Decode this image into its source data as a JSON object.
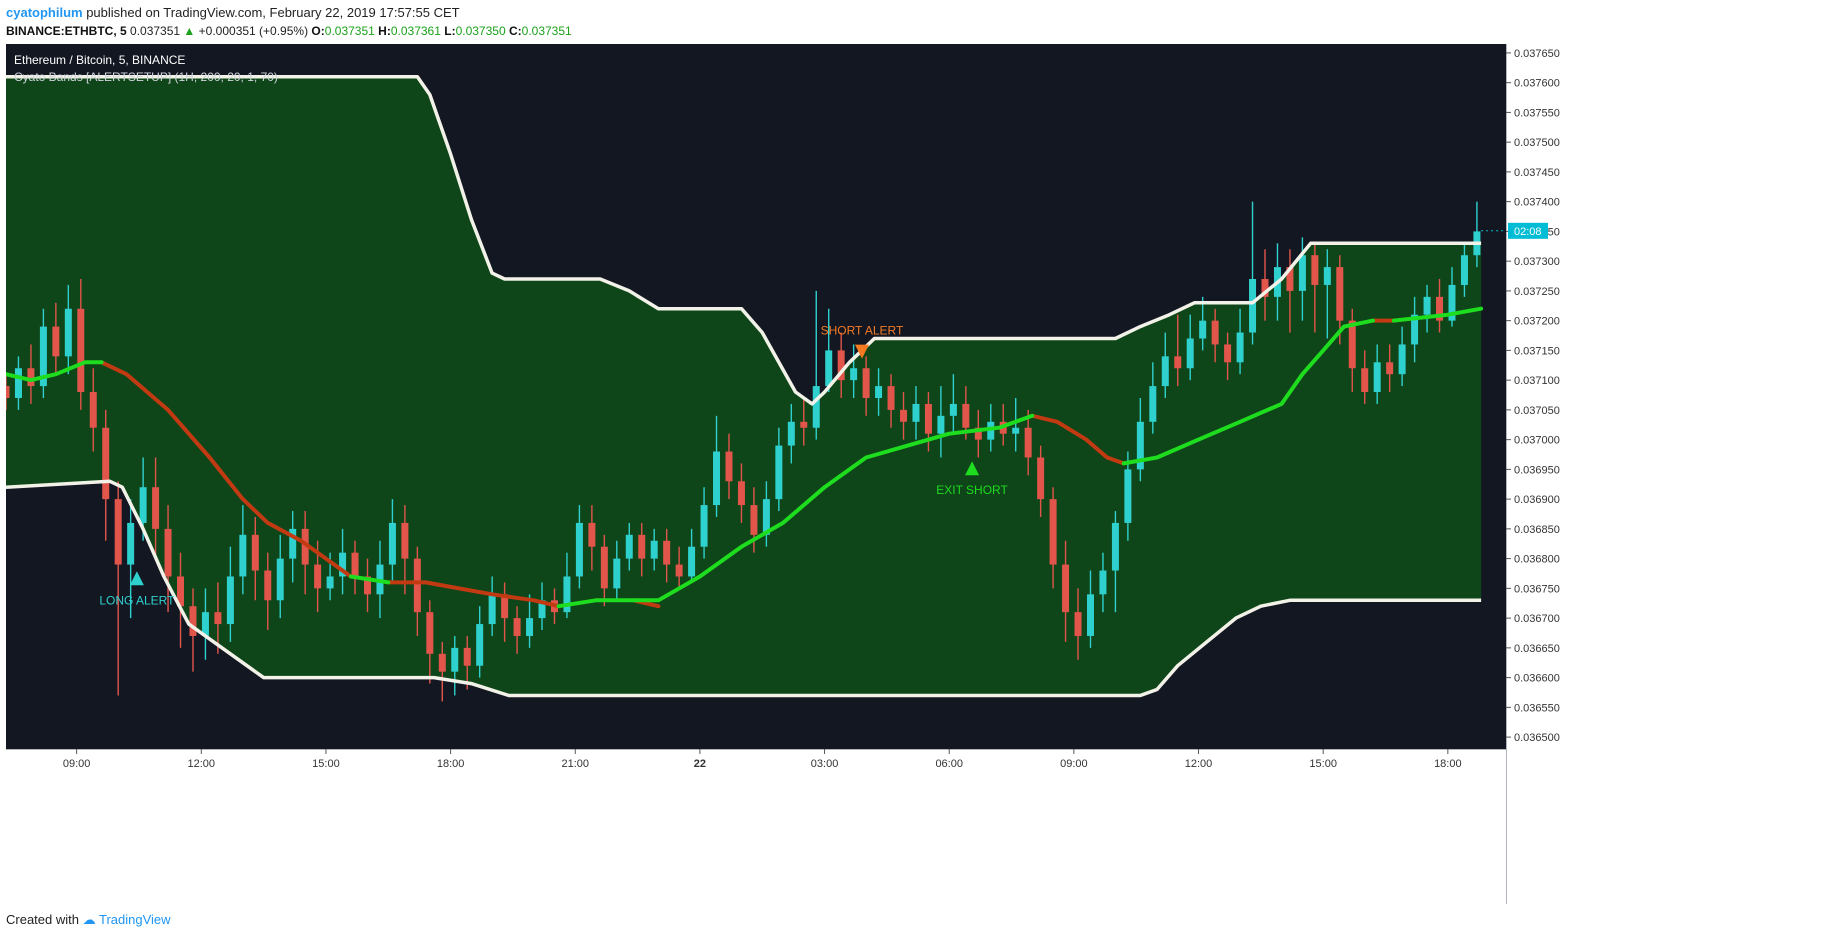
{
  "header": {
    "author": "cyatophilum",
    "published_text": "published on TradingView.com, February 22, 2019 17:57:55 CET",
    "symbol": "BINANCE:ETHBTC, 5",
    "last": "0.037351",
    "change": "+0.000351 (+0.95%)",
    "o_label": "O:",
    "o_value": "0.037351",
    "h_label": "H:",
    "h_value": "0.037361",
    "l_label": "L:",
    "l_value": "0.037350",
    "c_label": "C:",
    "c_value": "0.037351"
  },
  "legend": {
    "title": "Ethereum / Bitcoin, 5, BINANCE",
    "indicator": "Cyato Bands [ALERTSETUP] (1H, 200, 20, 1, 70)"
  },
  "footer": {
    "created_with": "Created with",
    "brand": "TradingView"
  },
  "chart_data": {
    "type": "candlestick",
    "y_ticks": [
      "0.036500",
      "0.036550",
      "0.036600",
      "0.036650",
      "0.036700",
      "0.036750",
      "0.036800",
      "0.036850",
      "0.036900",
      "0.036950",
      "0.037000",
      "0.037050",
      "0.037100",
      "0.037150",
      "0.037200",
      "0.037250",
      "0.037300",
      "0.037350",
      "0.037400",
      "0.037450",
      "0.037500",
      "0.037550",
      "0.037600",
      "0.037650"
    ],
    "ylim": [
      0.03648,
      0.037665
    ],
    "x_ticks": [
      "09:00",
      "12:00",
      "15:00",
      "18:00",
      "21:00",
      "22",
      "03:00",
      "06:00",
      "09:00",
      "12:00",
      "15:00",
      "18:00"
    ],
    "x_tick_hours": [
      9,
      12,
      15,
      18,
      21,
      24,
      27,
      30,
      33,
      36,
      39,
      42
    ],
    "xlim": [
      7.3,
      43.4
    ],
    "price_badge": "02:08",
    "last_price": 0.037351,
    "colors": {
      "background": "#131722",
      "band_fill": "#0e4519",
      "band_line": "#f2f2e8",
      "basis_up": "#1edc1e",
      "basis_down": "#c23a12",
      "candle_up": "#2fd1cf",
      "candle_down": "#e2554b",
      "alert_long": "#2fd1cf",
      "alert_short": "#f47a22",
      "alert_exit": "#1edc1e",
      "badge": "#00bcd4"
    },
    "upper_band": [
      [
        7.3,
        0.03761
      ],
      [
        17.2,
        0.03761
      ],
      [
        17.5,
        0.03758
      ],
      [
        18.0,
        0.03748
      ],
      [
        18.5,
        0.03737
      ],
      [
        19.0,
        0.03728
      ],
      [
        19.3,
        0.03727
      ],
      [
        21.6,
        0.03727
      ],
      [
        22.3,
        0.03725
      ],
      [
        23.0,
        0.03722
      ],
      [
        24.6,
        0.03722
      ],
      [
        25.0,
        0.03722
      ],
      [
        25.5,
        0.03718
      ],
      [
        26.3,
        0.03708
      ],
      [
        26.7,
        0.03706
      ],
      [
        27.0,
        0.03708
      ],
      [
        27.6,
        0.03713
      ],
      [
        28.2,
        0.03717
      ],
      [
        34.0,
        0.03717
      ],
      [
        34.6,
        0.03719
      ],
      [
        35.3,
        0.03721
      ],
      [
        35.9,
        0.03723
      ],
      [
        37.3,
        0.03723
      ],
      [
        38.0,
        0.03727
      ],
      [
        38.7,
        0.03733
      ],
      [
        42.8,
        0.03733
      ]
    ],
    "lower_band": [
      [
        7.3,
        0.03692
      ],
      [
        9.8,
        0.03693
      ],
      [
        10.1,
        0.03692
      ],
      [
        10.6,
        0.03685
      ],
      [
        11.1,
        0.03677
      ],
      [
        11.7,
        0.03669
      ],
      [
        12.5,
        0.03665
      ],
      [
        13.5,
        0.0366
      ],
      [
        17.6,
        0.0366
      ],
      [
        18.5,
        0.03659
      ],
      [
        19.4,
        0.03657
      ],
      [
        34.6,
        0.03657
      ],
      [
        35.0,
        0.03658
      ],
      [
        35.5,
        0.03662
      ],
      [
        36.2,
        0.03666
      ],
      [
        36.9,
        0.0367
      ],
      [
        37.5,
        0.03672
      ],
      [
        38.2,
        0.03673
      ],
      [
        42.8,
        0.03673
      ]
    ],
    "basis_up_segments": [
      [
        [
          7.3,
          0.03711
        ],
        [
          7.9,
          0.0371
        ],
        [
          8.5,
          0.03711
        ],
        [
          9.2,
          0.03713
        ],
        [
          9.6,
          0.03713
        ]
      ],
      [
        [
          15.6,
          0.03677
        ],
        [
          16.5,
          0.03676
        ]
      ],
      [
        [
          20.6,
          0.03672
        ],
        [
          21.5,
          0.03673
        ],
        [
          22.4,
          0.03673
        ],
        [
          23.0,
          0.03673
        ],
        [
          24.0,
          0.03677
        ],
        [
          25.0,
          0.03682
        ],
        [
          26.0,
          0.03686
        ],
        [
          27.0,
          0.03692
        ],
        [
          28.0,
          0.03697
        ],
        [
          29.0,
          0.03699
        ],
        [
          30.0,
          0.03701
        ],
        [
          31.2,
          0.03702
        ],
        [
          32.0,
          0.03704
        ]
      ],
      [
        [
          34.2,
          0.03696
        ],
        [
          35.0,
          0.03697
        ],
        [
          36.0,
          0.037
        ],
        [
          37.0,
          0.03703
        ],
        [
          38.0,
          0.03706
        ],
        [
          38.5,
          0.03711
        ],
        [
          39.0,
          0.03715
        ],
        [
          39.5,
          0.03719
        ],
        [
          40.2,
          0.0372
        ]
      ],
      [
        [
          40.7,
          0.0372
        ],
        [
          42.0,
          0.03721
        ],
        [
          42.8,
          0.03722
        ]
      ]
    ],
    "basis_down_segments": [
      [
        [
          9.6,
          0.03713
        ],
        [
          10.2,
          0.03711
        ],
        [
          11.2,
          0.03705
        ],
        [
          12.2,
          0.03697
        ],
        [
          13.0,
          0.0369
        ],
        [
          13.6,
          0.03686
        ],
        [
          14.4,
          0.03683
        ],
        [
          15.0,
          0.0368
        ],
        [
          15.6,
          0.03677
        ]
      ],
      [
        [
          16.5,
          0.03676
        ],
        [
          17.4,
          0.03676
        ],
        [
          18.2,
          0.03675
        ],
        [
          19.0,
          0.03674
        ],
        [
          20.0,
          0.03673
        ],
        [
          20.6,
          0.03672
        ]
      ],
      [
        [
          22.4,
          0.03673
        ],
        [
          23.0,
          0.03672
        ]
      ],
      [
        [
          32.0,
          0.03704
        ],
        [
          32.6,
          0.03703
        ],
        [
          33.3,
          0.037
        ],
        [
          33.8,
          0.03697
        ],
        [
          34.2,
          0.03696
        ]
      ],
      [
        [
          40.2,
          0.0372
        ],
        [
          40.7,
          0.0372
        ]
      ]
    ],
    "candles": [
      [
        7.3,
        0.03709,
        0.03707,
        0.03711,
        0.03705
      ],
      [
        7.6,
        0.03707,
        0.03712,
        0.03714,
        0.03705
      ],
      [
        7.9,
        0.03712,
        0.03709,
        0.03716,
        0.03706
      ],
      [
        8.2,
        0.03709,
        0.03719,
        0.03722,
        0.03707
      ],
      [
        8.5,
        0.03719,
        0.03714,
        0.03723,
        0.03711
      ],
      [
        8.8,
        0.03714,
        0.03722,
        0.03726,
        0.03711
      ],
      [
        9.1,
        0.03722,
        0.03708,
        0.03727,
        0.03705
      ],
      [
        9.4,
        0.03708,
        0.03702,
        0.03712,
        0.03698
      ],
      [
        9.7,
        0.03702,
        0.0369,
        0.03705,
        0.03683
      ],
      [
        10.0,
        0.0369,
        0.03679,
        0.03693,
        0.03657
      ],
      [
        10.3,
        0.03679,
        0.03686,
        0.0369,
        0.0367
      ],
      [
        10.6,
        0.03686,
        0.03692,
        0.03697,
        0.03683
      ],
      [
        10.9,
        0.03692,
        0.03685,
        0.03697,
        0.0368
      ],
      [
        11.2,
        0.03685,
        0.03677,
        0.03689,
        0.03671
      ],
      [
        11.5,
        0.03677,
        0.03672,
        0.03681,
        0.03665
      ],
      [
        11.8,
        0.03672,
        0.03667,
        0.03675,
        0.03661
      ],
      [
        12.1,
        0.03667,
        0.03671,
        0.03675,
        0.03663
      ],
      [
        12.4,
        0.03671,
        0.03669,
        0.03676,
        0.03664
      ],
      [
        12.7,
        0.03669,
        0.03677,
        0.03682,
        0.03666
      ],
      [
        13.0,
        0.03677,
        0.03684,
        0.03689,
        0.03674
      ],
      [
        13.3,
        0.03684,
        0.03678,
        0.03687,
        0.03673
      ],
      [
        13.6,
        0.03678,
        0.03673,
        0.03681,
        0.03668
      ],
      [
        13.9,
        0.03673,
        0.0368,
        0.03684,
        0.0367
      ],
      [
        14.2,
        0.0368,
        0.03685,
        0.03688,
        0.03676
      ],
      [
        14.5,
        0.03685,
        0.03679,
        0.03688,
        0.03674
      ],
      [
        14.8,
        0.03679,
        0.03675,
        0.03683,
        0.03671
      ],
      [
        15.1,
        0.03675,
        0.03677,
        0.03681,
        0.03673
      ],
      [
        15.4,
        0.03677,
        0.03681,
        0.03685,
        0.03674
      ],
      [
        15.7,
        0.03681,
        0.03677,
        0.03683,
        0.03674
      ],
      [
        16.0,
        0.03677,
        0.03674,
        0.0368,
        0.03671
      ],
      [
        16.3,
        0.03674,
        0.03679,
        0.03683,
        0.0367
      ],
      [
        16.6,
        0.03679,
        0.03686,
        0.0369,
        0.03676
      ],
      [
        16.9,
        0.03686,
        0.0368,
        0.03689,
        0.03674
      ],
      [
        17.2,
        0.0368,
        0.03671,
        0.03682,
        0.03667
      ],
      [
        17.5,
        0.03671,
        0.03664,
        0.03673,
        0.03659
      ],
      [
        17.8,
        0.03664,
        0.03661,
        0.03666,
        0.03656
      ],
      [
        18.1,
        0.03661,
        0.03665,
        0.03667,
        0.03657
      ],
      [
        18.4,
        0.03665,
        0.03662,
        0.03667,
        0.03658
      ],
      [
        18.7,
        0.03662,
        0.03669,
        0.03672,
        0.0366
      ],
      [
        19.0,
        0.03669,
        0.03674,
        0.03677,
        0.03667
      ],
      [
        19.3,
        0.03674,
        0.0367,
        0.03676,
        0.03666
      ],
      [
        19.6,
        0.0367,
        0.03667,
        0.03672,
        0.03664
      ],
      [
        19.9,
        0.03667,
        0.0367,
        0.03674,
        0.03665
      ],
      [
        20.2,
        0.0367,
        0.03673,
        0.03676,
        0.03668
      ],
      [
        20.5,
        0.03673,
        0.03671,
        0.03675,
        0.03669
      ],
      [
        20.8,
        0.03671,
        0.03677,
        0.03681,
        0.0367
      ],
      [
        21.1,
        0.03677,
        0.03686,
        0.03689,
        0.03675
      ],
      [
        21.4,
        0.03686,
        0.03682,
        0.03689,
        0.03678
      ],
      [
        21.7,
        0.03682,
        0.03675,
        0.03684,
        0.03672
      ],
      [
        22.0,
        0.03675,
        0.0368,
        0.03683,
        0.03673
      ],
      [
        22.3,
        0.0368,
        0.03684,
        0.03686,
        0.03678
      ],
      [
        22.6,
        0.03684,
        0.0368,
        0.03686,
        0.03677
      ],
      [
        22.9,
        0.0368,
        0.03683,
        0.03685,
        0.03678
      ],
      [
        23.2,
        0.03683,
        0.03679,
        0.03685,
        0.03676
      ],
      [
        23.5,
        0.03679,
        0.03677,
        0.03682,
        0.03675
      ],
      [
        23.8,
        0.03677,
        0.03682,
        0.03685,
        0.03676
      ],
      [
        24.1,
        0.03682,
        0.03689,
        0.03692,
        0.0368
      ],
      [
        24.4,
        0.03689,
        0.03698,
        0.03704,
        0.03687
      ],
      [
        24.7,
        0.03698,
        0.03693,
        0.03701,
        0.0369
      ],
      [
        25.0,
        0.03693,
        0.03689,
        0.03696,
        0.03686
      ],
      [
        25.3,
        0.03689,
        0.03684,
        0.03692,
        0.03681
      ],
      [
        25.6,
        0.03684,
        0.0369,
        0.03693,
        0.03682
      ],
      [
        25.9,
        0.0369,
        0.03699,
        0.03702,
        0.03688
      ],
      [
        26.2,
        0.03699,
        0.03703,
        0.03706,
        0.03696
      ],
      [
        26.5,
        0.03703,
        0.03702,
        0.03707,
        0.03699
      ],
      [
        26.8,
        0.03702,
        0.03709,
        0.03725,
        0.037
      ],
      [
        27.1,
        0.03709,
        0.03715,
        0.03722,
        0.03708
      ],
      [
        27.4,
        0.03715,
        0.0371,
        0.03718,
        0.03707
      ],
      [
        27.7,
        0.0371,
        0.03712,
        0.03716,
        0.03707
      ],
      [
        28.0,
        0.03712,
        0.03707,
        0.03714,
        0.03704
      ],
      [
        28.3,
        0.03707,
        0.03709,
        0.03712,
        0.03704
      ],
      [
        28.6,
        0.03709,
        0.03705,
        0.03711,
        0.03702
      ],
      [
        28.9,
        0.03705,
        0.03703,
        0.03708,
        0.037
      ],
      [
        29.2,
        0.03703,
        0.03706,
        0.03709,
        0.037
      ],
      [
        29.5,
        0.03706,
        0.03701,
        0.03708,
        0.03698
      ],
      [
        29.8,
        0.03701,
        0.03704,
        0.03709,
        0.03697
      ],
      [
        30.1,
        0.03704,
        0.03706,
        0.03711,
        0.03701
      ],
      [
        30.4,
        0.03706,
        0.03702,
        0.03709,
        0.037
      ],
      [
        30.7,
        0.03702,
        0.037,
        0.03705,
        0.03697
      ],
      [
        31.0,
        0.037,
        0.03703,
        0.03706,
        0.03698
      ],
      [
        31.3,
        0.03703,
        0.03701,
        0.03706,
        0.03699
      ],
      [
        31.6,
        0.03701,
        0.03702,
        0.03707,
        0.03698
      ],
      [
        31.9,
        0.03702,
        0.03697,
        0.03705,
        0.03694
      ],
      [
        32.2,
        0.03697,
        0.0369,
        0.03699,
        0.03687
      ],
      [
        32.5,
        0.0369,
        0.03679,
        0.03692,
        0.03675
      ],
      [
        32.8,
        0.03679,
        0.03671,
        0.03683,
        0.03666
      ],
      [
        33.1,
        0.03671,
        0.03667,
        0.03675,
        0.03663
      ],
      [
        33.4,
        0.03667,
        0.03674,
        0.03678,
        0.03665
      ],
      [
        33.7,
        0.03674,
        0.03678,
        0.03681,
        0.03671
      ],
      [
        34.0,
        0.03678,
        0.03686,
        0.03688,
        0.03671
      ],
      [
        34.3,
        0.03686,
        0.03695,
        0.03698,
        0.03683
      ],
      [
        34.6,
        0.03695,
        0.03703,
        0.03707,
        0.03693
      ],
      [
        34.9,
        0.03703,
        0.03709,
        0.03713,
        0.03701
      ],
      [
        35.2,
        0.03709,
        0.03714,
        0.03718,
        0.03707
      ],
      [
        35.5,
        0.03714,
        0.03712,
        0.03721,
        0.03709
      ],
      [
        35.8,
        0.03712,
        0.03717,
        0.03721,
        0.0371
      ],
      [
        36.1,
        0.03717,
        0.0372,
        0.03724,
        0.03715
      ],
      [
        36.4,
        0.0372,
        0.03716,
        0.03722,
        0.03713
      ],
      [
        36.7,
        0.03716,
        0.03713,
        0.03718,
        0.0371
      ],
      [
        37.0,
        0.03713,
        0.03718,
        0.03722,
        0.03711
      ],
      [
        37.3,
        0.03718,
        0.03727,
        0.0374,
        0.03716
      ],
      [
        37.6,
        0.03727,
        0.03724,
        0.03732,
        0.0372
      ],
      [
        37.9,
        0.03724,
        0.03729,
        0.03733,
        0.0372
      ],
      [
        38.2,
        0.03729,
        0.03725,
        0.03732,
        0.03718
      ],
      [
        38.5,
        0.03725,
        0.03731,
        0.03734,
        0.0372
      ],
      [
        38.8,
        0.03731,
        0.03726,
        0.03733,
        0.03718
      ],
      [
        39.1,
        0.03726,
        0.03729,
        0.03732,
        0.03717
      ],
      [
        39.4,
        0.03729,
        0.0372,
        0.03731,
        0.03716
      ],
      [
        39.7,
        0.0372,
        0.03712,
        0.03722,
        0.03708
      ],
      [
        40.0,
        0.03712,
        0.03708,
        0.03715,
        0.03706
      ],
      [
        40.3,
        0.03708,
        0.03713,
        0.03716,
        0.03706
      ],
      [
        40.6,
        0.03713,
        0.03711,
        0.03716,
        0.03708
      ],
      [
        40.9,
        0.03711,
        0.03716,
        0.03719,
        0.03709
      ],
      [
        41.2,
        0.03716,
        0.03721,
        0.03724,
        0.03713
      ],
      [
        41.5,
        0.03721,
        0.03724,
        0.03726,
        0.03718
      ],
      [
        41.8,
        0.03724,
        0.0372,
        0.03727,
        0.03718
      ],
      [
        42.1,
        0.0372,
        0.03726,
        0.03729,
        0.03719
      ],
      [
        42.4,
        0.03726,
        0.03731,
        0.03733,
        0.03724
      ],
      [
        42.7,
        0.03731,
        0.03735,
        0.0374,
        0.03729
      ]
    ],
    "alerts": [
      {
        "label": "LONG ALERT",
        "kind": "long",
        "x": 10.45,
        "y": 0.036767
      },
      {
        "label": "SHORT ALERT",
        "kind": "short",
        "x": 27.9,
        "y": 0.037148
      },
      {
        "label": "EXIT SHORT",
        "kind": "exit",
        "x": 30.55,
        "y": 0.036952
      }
    ]
  }
}
